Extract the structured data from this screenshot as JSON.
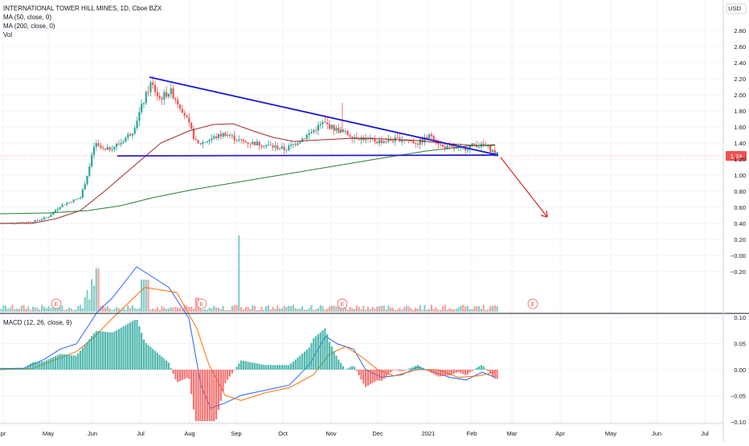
{
  "header": {
    "symbol_line": "INTERNATIONAL TOWER HILL MINES, 1D, Cboe BZX",
    "indicators": [
      "MA (50, close, 0)",
      "MA (200, close, 0)",
      "Vol"
    ],
    "currency": "USD"
  },
  "macd_panel": {
    "label": "MACD (12, 26, close, 9)"
  },
  "price_axis": {
    "ticks": [
      "2.80",
      "2.60",
      "2.40",
      "2.20",
      "2.00",
      "1.80",
      "1.60",
      "1.40",
      "1.20",
      "1.00",
      "0.80",
      "0.60",
      "0.40",
      "0.20",
      "−0.00",
      "−0.20"
    ],
    "last_price": "1.24"
  },
  "macd_axis": {
    "ticks": [
      "0.10",
      "0.05",
      "0.00",
      "−0.05",
      "−0.10"
    ]
  },
  "time_axis": {
    "ticks": [
      "pr",
      "May",
      "Jun",
      "Jul",
      "Aug",
      "Sep",
      "Oct",
      "Nov",
      "Dec",
      "2021",
      "Feb",
      "Mar",
      "Apr",
      "May",
      "Jun",
      "Jul"
    ]
  },
  "earnings_marker": "E",
  "colors": {
    "up": "#26a69a",
    "down": "#ef5350",
    "ma50": "#a52a2a",
    "ma200": "#2e7d32",
    "trendline": "#1a1ad4",
    "arrow": "#e02020",
    "macd": "#2962ff",
    "signal": "#ff6d00",
    "last_price_badge": "#ef5350"
  },
  "chart_data": {
    "type": "candlestick",
    "x_range": [
      "Apr 2020",
      "Jul 2021"
    ],
    "y_range": [
      -0.2,
      2.9
    ],
    "last_close": 1.24,
    "trendlines": [
      {
        "name": "",
        "from": [
          "2020-07-03",
          2.22
        ],
        "to": [
          "2021-02-18",
          1.25
        ]
      },
      {
        "name": "",
        "from": [
          "2020-06-20",
          1.24
        ],
        "to": [
          "2021-02-18",
          1.25
        ]
      }
    ],
    "projection_arrow": {
      "from": [
        "2021-02-18",
        1.22
      ],
      "to": [
        "2021-03-20",
        0.48
      ]
    },
    "macd_range": [
      -0.11,
      0.1
    ]
  }
}
